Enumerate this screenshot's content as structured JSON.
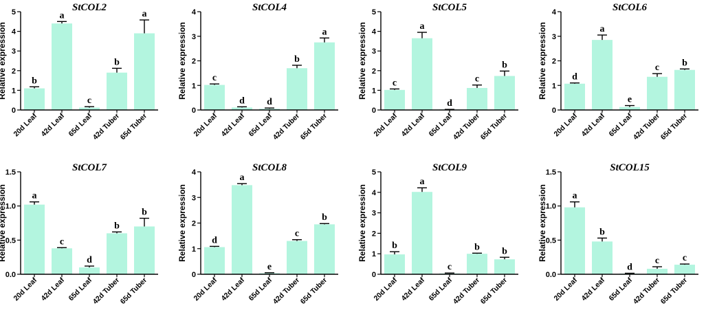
{
  "chart_data": [
    {
      "type": "bar",
      "title": "StCOL2",
      "ylabel": "Relative expression",
      "xlabel": "",
      "categories": [
        "20d Leaf",
        "42d Leaf",
        "65d Leaf",
        "42d Tuber",
        "65d Tuber"
      ],
      "values": [
        1.1,
        4.4,
        0.12,
        1.9,
        3.9
      ],
      "errors": [
        0.08,
        0.1,
        0.05,
        0.22,
        0.68
      ],
      "letters": [
        "b",
        "a",
        "c",
        "b",
        "a"
      ],
      "ylim": [
        0,
        5
      ],
      "yticks": [
        "0",
        "1",
        "2",
        "3",
        "4",
        "5"
      ]
    },
    {
      "type": "bar",
      "title": "StCOL4",
      "ylabel": "Relative expression",
      "xlabel": "",
      "categories": [
        "20d Leaf",
        "42d Leaf",
        "65d Leaf",
        "42d Tuber",
        "65d Tuber"
      ],
      "values": [
        1.02,
        0.1,
        0.05,
        1.7,
        2.75
      ],
      "errors": [
        0.04,
        0.03,
        0.03,
        0.12,
        0.18
      ],
      "letters": [
        "c",
        "d",
        "d",
        "b",
        "a"
      ],
      "ylim": [
        0,
        4
      ],
      "yticks": [
        "0",
        "1",
        "2",
        "3",
        "4"
      ]
    },
    {
      "type": "bar",
      "title": "StCOL5",
      "ylabel": "Relative expression",
      "xlabel": "",
      "categories": [
        "20d Leaf",
        "42d Leaf",
        "65d Leaf",
        "42d Tuber",
        "65d Tuber"
      ],
      "values": [
        1.02,
        3.65,
        0.02,
        1.12,
        1.73
      ],
      "errors": [
        0.05,
        0.3,
        0.01,
        0.15,
        0.25
      ],
      "letters": [
        "c",
        "a",
        "d",
        "c",
        "b"
      ],
      "ylim": [
        0,
        5
      ],
      "yticks": [
        "0",
        "1",
        "2",
        "3",
        "4",
        "5"
      ]
    },
    {
      "type": "bar",
      "title": "StCOL6",
      "ylabel": "Relative expression",
      "xlabel": "",
      "categories": [
        "20d Leaf",
        "42d Leaf",
        "65d Leaf",
        "42d Tuber",
        "65d Tuber"
      ],
      "values": [
        1.07,
        2.85,
        0.12,
        1.35,
        1.63
      ],
      "errors": [
        0.03,
        0.2,
        0.06,
        0.13,
        0.04
      ],
      "letters": [
        "d",
        "a",
        "e",
        "c",
        "b"
      ],
      "ylim": [
        0,
        4
      ],
      "yticks": [
        "0",
        "1",
        "2",
        "3",
        "4"
      ]
    },
    {
      "type": "bar",
      "title": "StCOL7",
      "ylabel": "Relative expression",
      "xlabel": "",
      "categories": [
        "20d Leaf",
        "42d Leaf",
        "65d Leaf",
        "42d Tuber",
        "65d Tuber"
      ],
      "values": [
        1.02,
        0.38,
        0.1,
        0.6,
        0.7
      ],
      "errors": [
        0.04,
        0.01,
        0.02,
        0.02,
        0.12
      ],
      "letters": [
        "a",
        "c",
        "d",
        "b",
        "b"
      ],
      "ylim": [
        0,
        1.5
      ],
      "yticks": [
        "0.0",
        "0.5",
        "1.0",
        "1.5"
      ]
    },
    {
      "type": "bar",
      "title": "StCOL8",
      "ylabel": "Relative expression",
      "xlabel": "",
      "categories": [
        "20d Leaf",
        "42d Leaf",
        "65d Leaf",
        "42d Tuber",
        "65d Tuber"
      ],
      "values": [
        1.06,
        3.48,
        0.04,
        1.3,
        1.95
      ],
      "errors": [
        0.03,
        0.06,
        0.02,
        0.05,
        0.03
      ],
      "letters": [
        "d",
        "a",
        "e",
        "c",
        "b"
      ],
      "ylim": [
        0,
        4
      ],
      "yticks": [
        "0",
        "1",
        "2",
        "3",
        "4"
      ]
    },
    {
      "type": "bar",
      "title": "StCOL9",
      "ylabel": "Relative expression",
      "xlabel": "",
      "categories": [
        "20d Leaf",
        "42d Leaf",
        "65d Leaf",
        "42d Tuber",
        "65d Tuber"
      ],
      "values": [
        0.97,
        4.02,
        0.04,
        1.0,
        0.73
      ],
      "errors": [
        0.13,
        0.2,
        0.02,
        0.03,
        0.1
      ],
      "letters": [
        "b",
        "a",
        "c",
        "b",
        "b"
      ],
      "ylim": [
        0,
        5
      ],
      "yticks": [
        "0",
        "1",
        "2",
        "3",
        "4",
        "5"
      ]
    },
    {
      "type": "bar",
      "title": "StCOL15",
      "ylabel": "Relative expression",
      "xlabel": "",
      "categories": [
        "20d Leaf",
        "42d Leaf",
        "65d Leaf",
        "42d Tuber",
        "65d Tuber"
      ],
      "values": [
        0.98,
        0.48,
        0.01,
        0.08,
        0.14
      ],
      "errors": [
        0.08,
        0.05,
        0.005,
        0.03,
        0.01
      ],
      "letters": [
        "a",
        "b",
        "d",
        "c",
        "c"
      ],
      "ylim": [
        0,
        1.5
      ],
      "yticks": [
        "0.0",
        "0.5",
        "1.0",
        "1.5"
      ]
    }
  ],
  "colors": {
    "bar": "#b3f5df",
    "axis": "#000000"
  }
}
